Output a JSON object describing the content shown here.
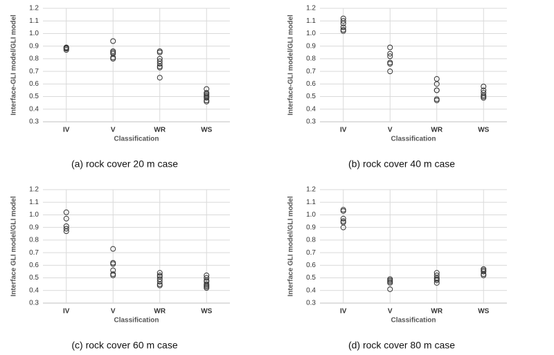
{
  "chart_data": [
    {
      "type": "scatter",
      "caption": "(a) rock cover 20 m case",
      "ylabel": "Interface-GLI model/GLI model",
      "xlabel": "Classification",
      "categories": [
        "IV",
        "V",
        "WR",
        "WS"
      ],
      "values": [
        [
          0.89,
          0.885,
          0.88,
          0.87
        ],
        [
          0.94,
          0.86,
          0.85,
          0.84,
          0.81,
          0.8
        ],
        [
          0.86,
          0.85,
          0.8,
          0.78,
          0.76,
          0.74,
          0.73,
          0.65
        ],
        [
          0.56,
          0.53,
          0.52,
          0.51,
          0.5,
          0.49,
          0.47,
          0.46
        ]
      ],
      "ylim": [
        0.3,
        1.2
      ],
      "yticks": [
        0.3,
        0.4,
        0.5,
        0.6,
        0.7,
        0.8,
        0.9,
        {
          "value": 1,
          "label": "1.0"
        },
        1.1,
        1.2
      ],
      "grid": true
    },
    {
      "type": "scatter",
      "caption": "(b) rock cover 40 m case",
      "ylabel": "Interface-GLI model/GLI model",
      "xlabel": "Classification",
      "categories": [
        "IV",
        "V",
        "WR",
        "WS"
      ],
      "values": [
        [
          1.12,
          1.1,
          1.08,
          1.05,
          1.03,
          1.02
        ],
        [
          0.89,
          0.84,
          0.82,
          0.77,
          0.76,
          0.7
        ],
        [
          0.64,
          0.6,
          0.55,
          0.55,
          0.48,
          0.47
        ],
        [
          0.58,
          0.55,
          0.53,
          0.51,
          0.5,
          0.49
        ]
      ],
      "ylim": [
        0.3,
        1.2
      ],
      "yticks": [
        0.3,
        0.4,
        0.5,
        0.6,
        0.7,
        0.8,
        0.9,
        {
          "value": 1,
          "label": "1.0"
        },
        1.1,
        1.2
      ],
      "grid": true
    },
    {
      "type": "scatter",
      "caption": "(c) rock cover 60 m case",
      "ylabel": "Interface GLI model/GLI model",
      "xlabel": "Classification",
      "categories": [
        "IV",
        "V",
        "WR",
        "WS"
      ],
      "values": [
        [
          1.02,
          0.97,
          0.91,
          0.89,
          0.87
        ],
        [
          0.73,
          0.62,
          0.61,
          0.56,
          0.53,
          0.52
        ],
        [
          0.54,
          0.52,
          0.51,
          0.49,
          0.47,
          0.45,
          0.44
        ],
        [
          0.52,
          0.5,
          0.48,
          0.47,
          0.45,
          0.44,
          0.43,
          0.42
        ]
      ],
      "ylim": [
        0.3,
        1.2
      ],
      "yticks": [
        0.3,
        0.4,
        0.5,
        0.6,
        0.7,
        0.8,
        0.9,
        {
          "value": 1,
          "label": "1.0"
        },
        1.1,
        1.2
      ],
      "grid": true
    },
    {
      "type": "scatter",
      "caption": "(d) rock cover 80 m case",
      "ylabel": "Interface GLI model/GLI model",
      "xlabel": "Classification",
      "categories": [
        "IV",
        "V",
        "WR",
        "WS"
      ],
      "values": [
        [
          1.04,
          1.03,
          0.97,
          0.95,
          0.94,
          0.9
        ],
        [
          0.49,
          0.48,
          0.47,
          0.46,
          0.41
        ],
        [
          0.54,
          0.52,
          0.5,
          0.49,
          0.48,
          0.46
        ],
        [
          0.57,
          0.56,
          0.55,
          0.53,
          0.52
        ]
      ],
      "ylim": [
        0.3,
        1.2
      ],
      "yticks": [
        0.3,
        0.4,
        0.5,
        0.6,
        0.7,
        0.8,
        0.9,
        {
          "value": 1,
          "label": "1.0"
        },
        1.1,
        1.2
      ],
      "grid": true
    }
  ]
}
